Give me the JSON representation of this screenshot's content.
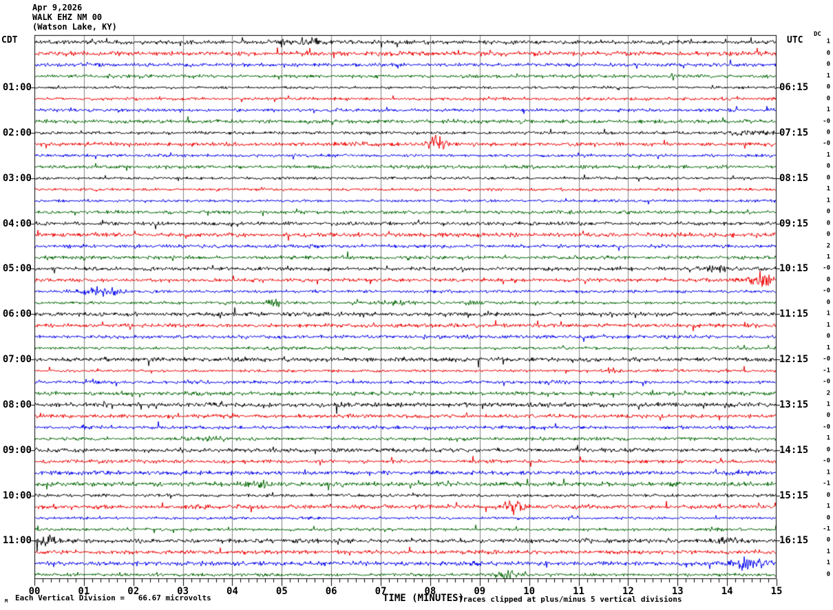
{
  "header": {
    "date": "Apr 9,2026",
    "station": "WALK EHZ NM 00",
    "location": "(Watson Lake, KY)"
  },
  "axes": {
    "left_timezone": "CDT",
    "right_timezone": "UTC",
    "dc_column_label": "DC",
    "x_axis_title": "TIME (MINUTES)",
    "clip_note": "Traces clipped at plus/minus 5 vertical divisions",
    "scale_note": "Each Vertical Division =   66.67 microvolts",
    "corner_mark": "M"
  },
  "chart_data": {
    "type": "line",
    "subtype": "helicorder-seismogram",
    "x_range_minutes": [
      0,
      15
    ],
    "x_tick_labels": [
      "00",
      "01",
      "02",
      "03",
      "04",
      "05",
      "06",
      "07",
      "08",
      "09",
      "10",
      "11",
      "12",
      "13",
      "14",
      "15"
    ],
    "minor_ticks_per_minute": 6,
    "grid_on": true,
    "grid_color": "#808080",
    "background_color": "#ffffff",
    "trace_color_cycle": [
      "#000000",
      "#ee0000",
      "#0000ee",
      "#006600"
    ],
    "minutes_per_row": 15,
    "rows": [
      {
        "left": "",
        "right": "",
        "dc": "1",
        "events": [
          {
            "m": 5.5,
            "w": 0.35,
            "a": 2.0
          }
        ]
      },
      {
        "left": "",
        "right": "",
        "dc": "0",
        "events": []
      },
      {
        "left": "",
        "right": "",
        "dc": "0",
        "events": []
      },
      {
        "left": "",
        "right": "",
        "dc": "1",
        "events": []
      },
      {
        "left": "01:00",
        "right": "06:15",
        "dc": "0",
        "events": []
      },
      {
        "left": "",
        "right": "",
        "dc": "0",
        "events": []
      },
      {
        "left": "",
        "right": "",
        "dc": "1",
        "events": []
      },
      {
        "left": "",
        "right": "",
        "dc": "-0",
        "events": []
      },
      {
        "left": "02:00",
        "right": "07:15",
        "dc": "0",
        "events": [
          {
            "m": 14.5,
            "w": 0.3,
            "a": 2.2
          }
        ]
      },
      {
        "left": "",
        "right": "",
        "dc": "-0",
        "events": [
          {
            "m": 6.5,
            "w": 0.25,
            "a": 2.0
          },
          {
            "m": 8.15,
            "w": 0.13,
            "a": 6.0
          }
        ]
      },
      {
        "left": "",
        "right": "",
        "dc": "1",
        "events": []
      },
      {
        "left": "",
        "right": "",
        "dc": "0",
        "events": []
      },
      {
        "left": "03:00",
        "right": "08:15",
        "dc": "0",
        "events": []
      },
      {
        "left": "",
        "right": "",
        "dc": "1",
        "events": []
      },
      {
        "left": "",
        "right": "",
        "dc": "1",
        "events": []
      },
      {
        "left": "",
        "right": "",
        "dc": "0",
        "events": []
      },
      {
        "left": "04:00",
        "right": "09:15",
        "dc": "0",
        "events": []
      },
      {
        "left": "",
        "right": "",
        "dc": "0",
        "events": []
      },
      {
        "left": "",
        "right": "",
        "dc": "2",
        "events": []
      },
      {
        "left": "",
        "right": "",
        "dc": "1",
        "events": []
      },
      {
        "left": "05:00",
        "right": "10:15",
        "dc": "-0",
        "events": [
          {
            "m": 13.8,
            "w": 0.25,
            "a": 2.0
          }
        ]
      },
      {
        "left": "",
        "right": "",
        "dc": "0",
        "events": [
          {
            "m": 14.65,
            "w": 0.2,
            "a": 4.5
          }
        ]
      },
      {
        "left": "",
        "right": "",
        "dc": "-0",
        "events": [
          {
            "m": 1.3,
            "w": 0.3,
            "a": 3.8
          }
        ]
      },
      {
        "left": "",
        "right": "",
        "dc": "0",
        "events": [
          {
            "m": 4.85,
            "w": 0.12,
            "a": 3.5
          },
          {
            "m": 7.3,
            "w": 0.3,
            "a": 2.6
          },
          {
            "m": 8.9,
            "w": 0.12,
            "a": 3.0
          }
        ]
      },
      {
        "left": "06:00",
        "right": "11:15",
        "dc": "1",
        "events": []
      },
      {
        "left": "",
        "right": "",
        "dc": "1",
        "events": []
      },
      {
        "left": "",
        "right": "",
        "dc": "0",
        "events": []
      },
      {
        "left": "",
        "right": "",
        "dc": "1",
        "events": []
      },
      {
        "left": "07:00",
        "right": "12:15",
        "dc": "-0",
        "events": []
      },
      {
        "left": "",
        "right": "",
        "dc": "-1",
        "events": [
          {
            "m": 11.7,
            "w": 0.15,
            "a": 2.6
          }
        ]
      },
      {
        "left": "",
        "right": "",
        "dc": "-0",
        "events": []
      },
      {
        "left": "",
        "right": "",
        "dc": "2",
        "events": []
      },
      {
        "left": "08:00",
        "right": "13:15",
        "dc": "1",
        "events": []
      },
      {
        "left": "",
        "right": "",
        "dc": "0",
        "events": []
      },
      {
        "left": "",
        "right": "",
        "dc": "-0",
        "events": []
      },
      {
        "left": "",
        "right": "",
        "dc": "1",
        "events": [
          {
            "m": 3.5,
            "w": 0.3,
            "a": 2.0
          }
        ]
      },
      {
        "left": "09:00",
        "right": "14:15",
        "dc": "0",
        "events": []
      },
      {
        "left": "",
        "right": "",
        "dc": "-0",
        "events": []
      },
      {
        "left": "",
        "right": "",
        "dc": "1",
        "events": []
      },
      {
        "left": "",
        "right": "",
        "dc": "-1",
        "events": [
          {
            "m": 4.5,
            "w": 0.2,
            "a": 2.6
          }
        ]
      },
      {
        "left": "10:00",
        "right": "15:15",
        "dc": "0",
        "events": []
      },
      {
        "left": "",
        "right": "",
        "dc": "1",
        "events": [
          {
            "m": 9.7,
            "w": 0.15,
            "a": 4.0
          }
        ]
      },
      {
        "left": "",
        "right": "",
        "dc": "0",
        "events": []
      },
      {
        "left": "",
        "right": "",
        "dc": "-1",
        "events": []
      },
      {
        "left": "11:00",
        "right": "16:15",
        "dc": "0",
        "events": [
          {
            "m": 0.25,
            "w": 0.15,
            "a": 3.0
          },
          {
            "m": 14.0,
            "w": 0.15,
            "a": 2.5
          }
        ]
      },
      {
        "left": "",
        "right": "",
        "dc": "1",
        "events": []
      },
      {
        "left": "",
        "right": "",
        "dc": "1",
        "events": [
          {
            "m": 14.4,
            "w": 0.25,
            "a": 3.4
          }
        ]
      },
      {
        "left": "",
        "right": "",
        "dc": "0",
        "events": [
          {
            "m": 9.55,
            "w": 0.18,
            "a": 2.8
          }
        ]
      }
    ]
  }
}
